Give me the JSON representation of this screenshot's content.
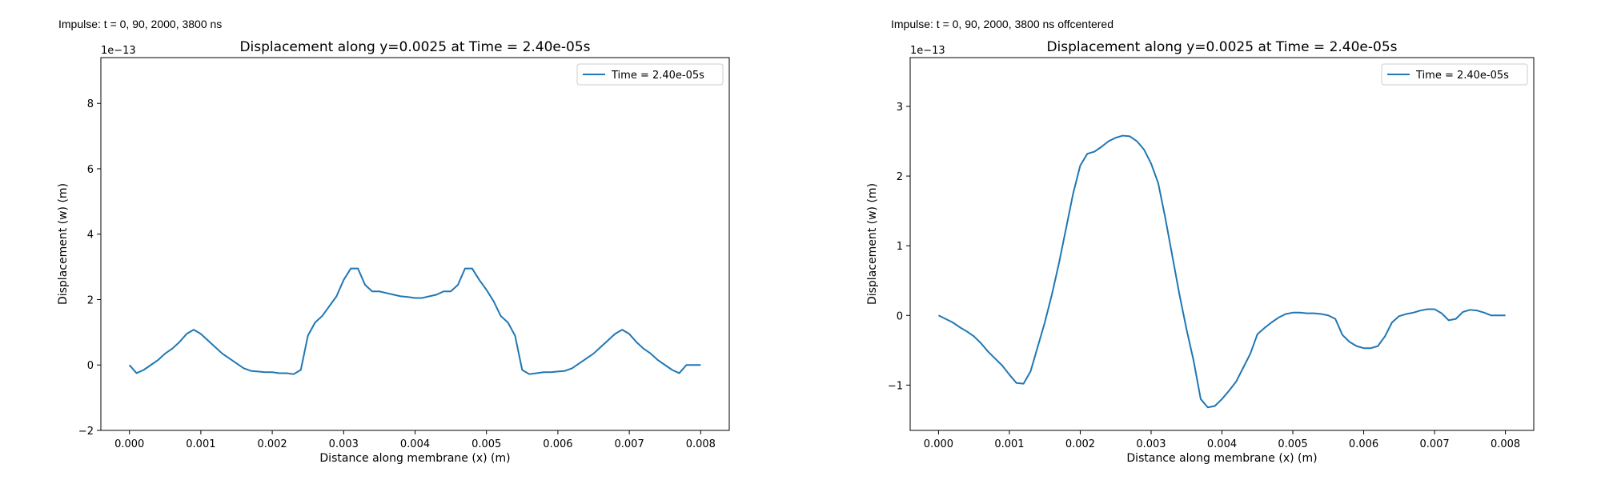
{
  "chart_data": [
    {
      "type": "line",
      "caption": "Impulse: t = 0, 90, 2000, 3800 ns",
      "title": "Displacement along y=0.0025 at Time = 2.40e-05s",
      "xlabel": "Distance along membrane (x) (m)",
      "ylabel": "Displacement (w) (m)",
      "y_offset_text": "1e−13",
      "y_scale": 1e-13,
      "xlim": [
        -0.0004,
        0.0084
      ],
      "ylim": [
        -2.0,
        9.4
      ],
      "xticks": [
        0.0,
        0.001,
        0.002,
        0.003,
        0.004,
        0.005,
        0.006,
        0.007,
        0.008
      ],
      "xtick_labels": [
        "0.000",
        "0.001",
        "0.002",
        "0.003",
        "0.004",
        "0.005",
        "0.006",
        "0.007",
        "0.008"
      ],
      "yticks": [
        -2,
        0,
        2,
        4,
        6,
        8
      ],
      "ytick_labels": [
        "−2",
        "0",
        "2",
        "4",
        "6",
        "8"
      ],
      "grid": false,
      "legend_position": "top-right",
      "series": [
        {
          "name": "Time = 2.40e-05s",
          "color": "#1f77b4",
          "x": [
            0.0,
            0.0001,
            0.0002,
            0.0003,
            0.0004,
            0.0005,
            0.0006,
            0.0007,
            0.0008,
            0.0009,
            0.001,
            0.0011,
            0.0012,
            0.0013,
            0.0014,
            0.0015,
            0.0016,
            0.0017,
            0.0018,
            0.0019,
            0.002,
            0.0021,
            0.0022,
            0.0023,
            0.0024,
            0.0025,
            0.0026,
            0.0027,
            0.0028,
            0.0029,
            0.003,
            0.0031,
            0.0032,
            0.0033,
            0.0034,
            0.0035,
            0.0036,
            0.0037,
            0.0038,
            0.0039,
            0.004,
            0.0041,
            0.0042,
            0.0043,
            0.0044,
            0.0045,
            0.0046,
            0.0047,
            0.0048,
            0.0049,
            0.005,
            0.0051,
            0.0052,
            0.0053,
            0.0054,
            0.0055,
            0.0056,
            0.0057,
            0.0058,
            0.0059,
            0.006,
            0.0061,
            0.0062,
            0.0063,
            0.0064,
            0.0065,
            0.0066,
            0.0067,
            0.0068,
            0.0069,
            0.007,
            0.0071,
            0.0072,
            0.0073,
            0.0074,
            0.0075,
            0.0076,
            0.0077,
            0.0078,
            0.0079,
            0.008
          ],
          "y": [
            0.0,
            -0.25,
            -0.15,
            0.0,
            0.15,
            0.35,
            0.5,
            0.7,
            0.95,
            1.08,
            0.95,
            0.75,
            0.55,
            0.35,
            0.2,
            0.05,
            -0.1,
            -0.18,
            -0.2,
            -0.22,
            -0.22,
            -0.25,
            -0.25,
            -0.28,
            -0.15,
            0.9,
            1.3,
            1.5,
            1.8,
            2.1,
            2.6,
            2.95,
            2.95,
            2.45,
            2.25,
            2.25,
            2.2,
            2.15,
            2.1,
            2.08,
            2.05,
            2.05,
            2.1,
            2.15,
            2.25,
            2.25,
            2.45,
            2.95,
            2.95,
            2.6,
            2.3,
            1.95,
            1.5,
            1.3,
            0.9,
            -0.15,
            -0.28,
            -0.25,
            -0.22,
            -0.22,
            -0.2,
            -0.18,
            -0.1,
            0.05,
            0.2,
            0.35,
            0.55,
            0.75,
            0.95,
            1.08,
            0.95,
            0.7,
            0.5,
            0.35,
            0.15,
            0.0,
            -0.15,
            -0.25,
            0.0,
            0.0,
            0.0
          ]
        }
      ]
    },
    {
      "type": "line",
      "caption": "Impulse: t = 0, 90, 2000, 3800 ns offcentered",
      "title": "Displacement along y=0.0025 at Time = 2.40e-05s",
      "xlabel": "Distance along membrane (x) (m)",
      "ylabel": "Displacement (w) (m)",
      "y_offset_text": "1e−13",
      "y_scale": 1e-13,
      "xlim": [
        -0.0004,
        0.0084
      ],
      "ylim": [
        -1.65,
        3.7
      ],
      "xticks": [
        0.0,
        0.001,
        0.002,
        0.003,
        0.004,
        0.005,
        0.006,
        0.007,
        0.008
      ],
      "xtick_labels": [
        "0.000",
        "0.001",
        "0.002",
        "0.003",
        "0.004",
        "0.005",
        "0.006",
        "0.007",
        "0.008"
      ],
      "yticks": [
        -1,
        0,
        1,
        2,
        3
      ],
      "ytick_labels": [
        "−1",
        "0",
        "1",
        "2",
        "3"
      ],
      "grid": false,
      "legend_position": "top-right",
      "series": [
        {
          "name": "Time = 2.40e-05s",
          "color": "#1f77b4",
          "x": [
            0.0,
            0.0001,
            0.0002,
            0.0003,
            0.0004,
            0.0005,
            0.0006,
            0.0007,
            0.0008,
            0.0009,
            0.001,
            0.0011,
            0.0012,
            0.0013,
            0.0014,
            0.0015,
            0.0016,
            0.0017,
            0.0018,
            0.0019,
            0.002,
            0.0021,
            0.0022,
            0.0023,
            0.0024,
            0.0025,
            0.0026,
            0.0027,
            0.0028,
            0.0029,
            0.003,
            0.0031,
            0.0032,
            0.0033,
            0.0034,
            0.0035,
            0.0036,
            0.0037,
            0.0038,
            0.0039,
            0.004,
            0.0041,
            0.0042,
            0.0043,
            0.0044,
            0.0045,
            0.0046,
            0.0047,
            0.0048,
            0.0049,
            0.005,
            0.0051,
            0.0052,
            0.0053,
            0.0054,
            0.0055,
            0.0056,
            0.0057,
            0.0058,
            0.0059,
            0.006,
            0.0061,
            0.0062,
            0.0063,
            0.0064,
            0.0065,
            0.0066,
            0.0067,
            0.0068,
            0.0069,
            0.007,
            0.0071,
            0.0072,
            0.0073,
            0.0074,
            0.0075,
            0.0076,
            0.0077,
            0.0078,
            0.0079,
            0.008
          ],
          "y": [
            0.0,
            -0.05,
            -0.1,
            -0.17,
            -0.23,
            -0.3,
            -0.4,
            -0.52,
            -0.62,
            -0.72,
            -0.85,
            -0.97,
            -0.98,
            -0.8,
            -0.45,
            -0.1,
            0.3,
            0.75,
            1.25,
            1.75,
            2.15,
            2.32,
            2.35,
            2.42,
            2.5,
            2.55,
            2.58,
            2.57,
            2.5,
            2.38,
            2.18,
            1.9,
            1.4,
            0.85,
            0.3,
            -0.2,
            -0.65,
            -1.2,
            -1.32,
            -1.3,
            -1.2,
            -1.08,
            -0.95,
            -0.75,
            -0.55,
            -0.27,
            -0.18,
            -0.1,
            -0.03,
            0.02,
            0.04,
            0.04,
            0.03,
            0.03,
            0.02,
            0.0,
            -0.05,
            -0.28,
            -0.38,
            -0.44,
            -0.47,
            -0.47,
            -0.44,
            -0.3,
            -0.1,
            -0.01,
            0.02,
            0.04,
            0.07,
            0.09,
            0.09,
            0.03,
            -0.07,
            -0.05,
            0.05,
            0.08,
            0.07,
            0.04,
            0.0,
            0.0,
            0.0
          ]
        }
      ]
    }
  ]
}
